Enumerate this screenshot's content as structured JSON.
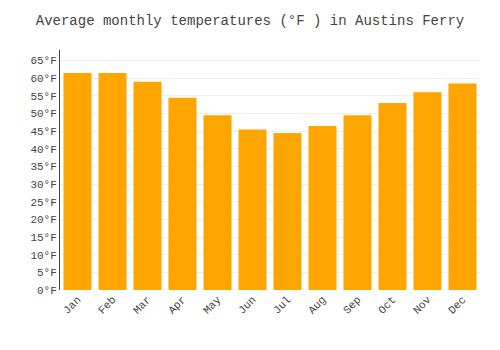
{
  "chart_data": {
    "type": "bar",
    "title": "Average monthly temperatures (°F ) in Austins Ferry",
    "categories": [
      "Jan",
      "Feb",
      "Mar",
      "Apr",
      "May",
      "Jun",
      "Jul",
      "Aug",
      "Sep",
      "Oct",
      "Nov",
      "Dec"
    ],
    "values": [
      61.5,
      61.5,
      59.0,
      54.5,
      49.5,
      45.5,
      44.5,
      46.5,
      49.5,
      53.0,
      56.0,
      58.5
    ],
    "color": "#FFA500",
    "ylim": [
      0,
      68
    ],
    "yticks": [
      {
        "value": 0,
        "label": "0°F"
      },
      {
        "value": 5,
        "label": "5°F"
      },
      {
        "value": 10,
        "label": "10°F"
      },
      {
        "value": 15,
        "label": "15°F"
      },
      {
        "value": 20,
        "label": "20°F"
      },
      {
        "value": 25,
        "label": "25°F"
      },
      {
        "value": 30,
        "label": "30°F"
      },
      {
        "value": 35,
        "label": "35°F"
      },
      {
        "value": 40,
        "label": "40°F"
      },
      {
        "value": 45,
        "label": "45°F"
      },
      {
        "value": 50,
        "label": "50°F"
      },
      {
        "value": 55,
        "label": "55°F"
      },
      {
        "value": 60,
        "label": "60°F"
      },
      {
        "value": 65,
        "label": "65°F"
      }
    ],
    "grid": true
  }
}
